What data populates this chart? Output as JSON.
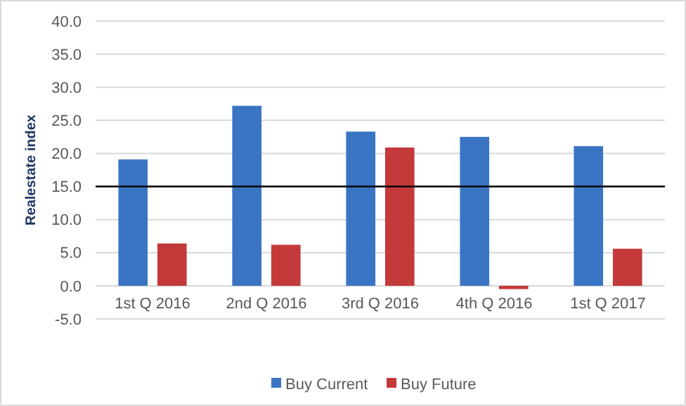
{
  "chart_data": {
    "type": "bar",
    "ylabel": "Realestate index",
    "categories": [
      "1st Q 2016",
      "2nd Q 2016",
      "3rd Q 2016",
      "4th Q 2016",
      "1st Q 2017"
    ],
    "series": [
      {
        "name": "Buy Current",
        "color": "#3a75c4",
        "values": [
          19.1,
          27.2,
          23.3,
          22.5,
          21.1
        ]
      },
      {
        "name": "Buy Future",
        "color": "#c43a3a",
        "values": [
          6.4,
          6.2,
          20.9,
          -0.5,
          5.6
        ]
      }
    ],
    "ylim": [
      -5,
      40
    ],
    "yticks": [
      {
        "value": -5,
        "label": "-5.0"
      },
      {
        "value": 0,
        "label": "0.0"
      },
      {
        "value": 5,
        "label": "5.0"
      },
      {
        "value": 10,
        "label": "10.0"
      },
      {
        "value": 15,
        "label": "15.0"
      },
      {
        "value": 20,
        "label": "20.0"
      },
      {
        "value": 25,
        "label": "25.0"
      },
      {
        "value": 30,
        "label": "30.0"
      },
      {
        "value": 35,
        "label": "35.0"
      },
      {
        "value": 40,
        "label": "40.0"
      }
    ],
    "grid": "y",
    "legend": "bottom",
    "ref_lines": [
      {
        "axis": "y",
        "value": 15,
        "color": "#000000"
      }
    ]
  }
}
